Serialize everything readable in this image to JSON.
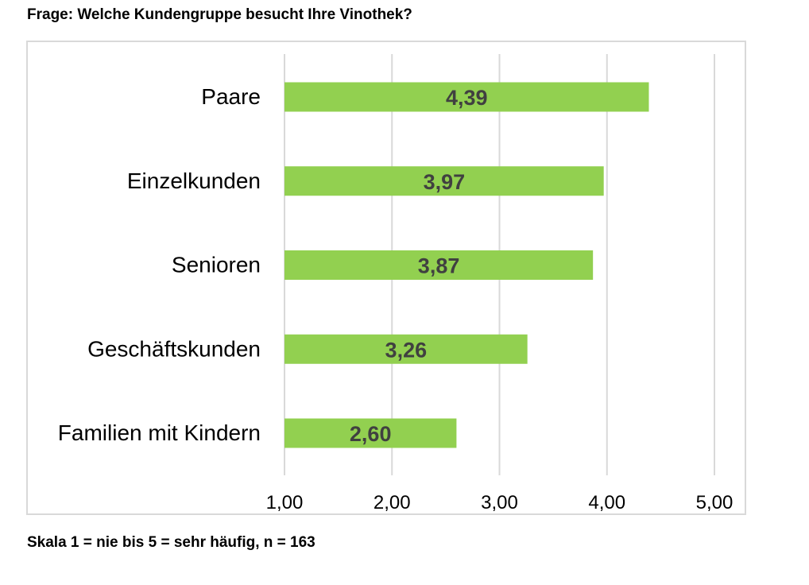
{
  "question": "Frage: Welche Kundengruppe besucht Ihre Vinothek?",
  "footnote": "Skala 1 = nie bis 5 = sehr häufig, n = 163",
  "colors": {
    "bar": "#92d050",
    "grid": "#d9d9d9",
    "axis_text": "#000000",
    "value_text": "#404040"
  },
  "chart_data": {
    "type": "bar",
    "orientation": "horizontal",
    "categories": [
      "Paare",
      "Einzelkunden",
      "Senioren",
      "Geschäftskunden",
      "Familien mit Kindern"
    ],
    "values": [
      4.39,
      3.97,
      3.87,
      3.26,
      2.6
    ],
    "value_labels": [
      "4,39",
      "3,97",
      "3,87",
      "3,26",
      "2,60"
    ],
    "xlim": [
      1,
      5
    ],
    "xticks": [
      1,
      2,
      3,
      4,
      5
    ],
    "xtick_labels": [
      "1,00",
      "2,00",
      "3,00",
      "4,00",
      "5,00"
    ],
    "grid": true,
    "legend": false
  }
}
